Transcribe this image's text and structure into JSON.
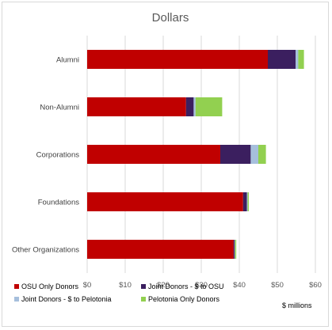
{
  "chart_data": {
    "type": "bar",
    "orientation": "horizontal",
    "stacked": true,
    "title": "Dollars",
    "unit_label": "$ millions",
    "categories": [
      "Alumni",
      "Non-Alumni",
      "Corporations",
      "Foundations",
      "Other Organizations"
    ],
    "series": [
      {
        "name": "OSU Only Donors",
        "color": "#c00000",
        "values": [
          47.5,
          26,
          35,
          41,
          38.5
        ]
      },
      {
        "name": "Joint Donors - $ to OSU",
        "color": "#3b1f5f",
        "values": [
          7.3,
          2,
          8,
          1,
          0.3
        ]
      },
      {
        "name": "Joint Donors - $ to Pelotonia",
        "color": "#a6bfdc",
        "values": [
          0.7,
          0.5,
          2,
          0.2,
          0.1
        ]
      },
      {
        "name": "Pelotonia Only Donors",
        "color": "#92d050",
        "values": [
          1.5,
          7,
          2,
          0.3,
          0.3
        ]
      }
    ],
    "xlim": [
      0,
      60
    ],
    "xticks": [
      "$0",
      "$10",
      "$20",
      "$30",
      "$40",
      "$50",
      "$60"
    ],
    "xtick_values": [
      0,
      10,
      20,
      30,
      40,
      50,
      60
    ],
    "grid": true,
    "legend_position": "bottom"
  }
}
